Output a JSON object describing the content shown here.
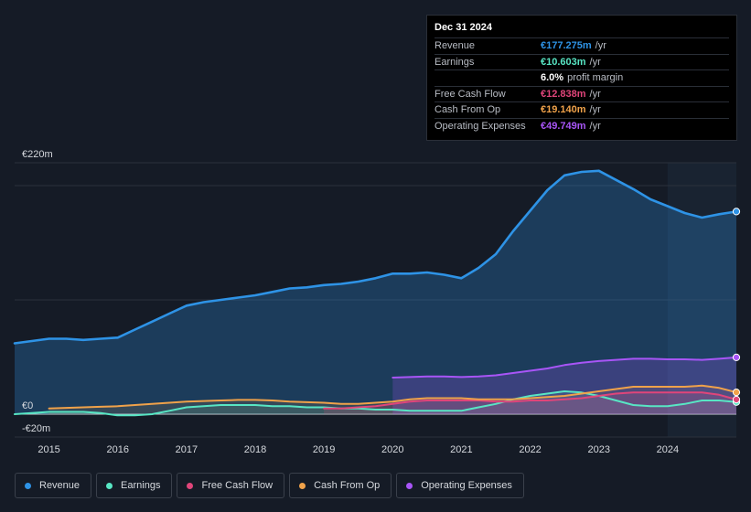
{
  "tooltip": {
    "date": "Dec 31 2024",
    "rows": [
      {
        "label": "Revenue",
        "value": "€177.275m",
        "unit": "/yr",
        "color": "#2e93e6"
      },
      {
        "label": "Earnings",
        "value": "€10.603m",
        "unit": "/yr",
        "color": "#58e6c4"
      },
      {
        "label": "",
        "value": "6.0%",
        "unit": "profit margin",
        "color": "#ffffff"
      },
      {
        "label": "Free Cash Flow",
        "value": "€12.838m",
        "unit": "/yr",
        "color": "#e0457a"
      },
      {
        "label": "Cash From Op",
        "value": "€19.140m",
        "unit": "/yr",
        "color": "#f0a24a"
      },
      {
        "label": "Operating Expenses",
        "value": "€49.749m",
        "unit": "/yr",
        "color": "#a855f7"
      }
    ]
  },
  "legend": [
    {
      "label": "Revenue",
      "color": "#2e93e6"
    },
    {
      "label": "Earnings",
      "color": "#58e6c4"
    },
    {
      "label": "Free Cash Flow",
      "color": "#e0457a"
    },
    {
      "label": "Cash From Op",
      "color": "#f0a24a"
    },
    {
      "label": "Operating Expenses",
      "color": "#a855f7"
    }
  ],
  "chart_data": {
    "type": "area",
    "title": "",
    "xlabel": "",
    "ylabel": "",
    "ylim": [
      -20,
      220
    ],
    "xlim": [
      2014.5,
      2025.0
    ],
    "y_tick_labels": [
      {
        "value": 220,
        "label": "€220m"
      },
      {
        "value": 0,
        "label": "€0"
      },
      {
        "value": -20,
        "label": "-€20m"
      }
    ],
    "x_ticks": [
      2015,
      2016,
      2017,
      2018,
      2019,
      2020,
      2021,
      2022,
      2023,
      2024
    ],
    "x_tick_labels": [
      "2015",
      "2016",
      "2017",
      "2018",
      "2019",
      "2020",
      "2021",
      "2022",
      "2023",
      "2024"
    ],
    "highlight_from": 2024.0,
    "series": [
      {
        "name": "Revenue",
        "color": "#2e93e6",
        "fill": true,
        "x": [
          2014.5,
          2014.75,
          2015.0,
          2015.25,
          2015.5,
          2015.75,
          2016.0,
          2016.25,
          2016.5,
          2016.75,
          2017.0,
          2017.25,
          2017.5,
          2017.75,
          2018.0,
          2018.25,
          2018.5,
          2018.75,
          2019.0,
          2019.25,
          2019.5,
          2019.75,
          2020.0,
          2020.25,
          2020.5,
          2020.75,
          2021.0,
          2021.25,
          2021.5,
          2021.75,
          2022.0,
          2022.25,
          2022.5,
          2022.75,
          2023.0,
          2023.25,
          2023.5,
          2023.75,
          2024.0,
          2024.25,
          2024.5,
          2024.75,
          2025.0
        ],
        "values": [
          62,
          64,
          66,
          66,
          65,
          66,
          67,
          74,
          81,
          88,
          95,
          98,
          100,
          102,
          104,
          107,
          110,
          111,
          113,
          114,
          116,
          119,
          123,
          123,
          124,
          122,
          119,
          128,
          140,
          160,
          178,
          196,
          209,
          212,
          213,
          205,
          197,
          188,
          182,
          176,
          172,
          175,
          177.3
        ]
      },
      {
        "name": "Earnings",
        "color": "#58e6c4",
        "fill": true,
        "x": [
          2014.5,
          2014.75,
          2015.0,
          2015.25,
          2015.5,
          2015.75,
          2016.0,
          2016.25,
          2016.5,
          2016.75,
          2017.0,
          2017.25,
          2017.5,
          2017.75,
          2018.0,
          2018.25,
          2018.5,
          2018.75,
          2019.0,
          2019.25,
          2019.5,
          2019.75,
          2020.0,
          2020.25,
          2020.5,
          2020.75,
          2021.0,
          2021.25,
          2021.5,
          2021.75,
          2022.0,
          2022.25,
          2022.5,
          2022.75,
          2023.0,
          2023.25,
          2023.5,
          2023.75,
          2024.0,
          2024.25,
          2024.5,
          2024.75,
          2025.0
        ],
        "values": [
          0,
          1,
          2,
          2,
          2,
          1,
          -1,
          -1,
          0,
          3,
          6,
          7,
          8,
          8,
          8,
          7,
          7,
          6,
          6,
          5,
          5,
          4,
          4,
          3,
          3,
          3,
          3,
          6,
          9,
          13,
          16,
          18,
          20,
          19,
          16,
          12,
          8,
          7,
          7,
          9,
          12,
          12,
          10.6
        ]
      },
      {
        "name": "Free Cash Flow",
        "color": "#e0457a",
        "fill": true,
        "x": [
          2019.0,
          2019.25,
          2019.5,
          2019.75,
          2020.0,
          2020.25,
          2020.5,
          2020.75,
          2021.0,
          2021.25,
          2021.5,
          2021.75,
          2022.0,
          2022.25,
          2022.5,
          2022.75,
          2023.0,
          2023.25,
          2023.5,
          2023.75,
          2024.0,
          2024.25,
          2024.5,
          2024.75,
          2025.0
        ],
        "values": [
          5,
          5,
          6,
          7,
          9,
          11,
          12,
          12,
          12,
          12,
          11,
          11,
          12,
          12,
          13,
          14,
          16,
          18,
          19,
          19,
          19,
          19,
          19,
          17,
          12.8
        ]
      },
      {
        "name": "Cash From Op",
        "color": "#f0a24a",
        "fill": true,
        "x": [
          2015.0,
          2015.25,
          2015.5,
          2015.75,
          2016.0,
          2016.25,
          2016.5,
          2016.75,
          2017.0,
          2017.25,
          2017.5,
          2017.75,
          2018.0,
          2018.25,
          2018.5,
          2018.75,
          2019.0,
          2019.25,
          2019.5,
          2019.75,
          2020.0,
          2020.25,
          2020.5,
          2020.75,
          2021.0,
          2021.25,
          2021.5,
          2021.75,
          2022.0,
          2022.25,
          2022.5,
          2022.75,
          2023.0,
          2023.25,
          2023.5,
          2023.75,
          2024.0,
          2024.25,
          2024.5,
          2024.75,
          2025.0
        ],
        "values": [
          5,
          5.5,
          6,
          6.5,
          7,
          8,
          9,
          10,
          11,
          11.5,
          12,
          12.5,
          12.5,
          12,
          11,
          10.5,
          10,
          9,
          9,
          10,
          11,
          13,
          14,
          14,
          14,
          13,
          13,
          13,
          14,
          15,
          16,
          18,
          20,
          22,
          24,
          24,
          24,
          24,
          25,
          23,
          19.1
        ]
      },
      {
        "name": "Operating Expenses",
        "color": "#a855f7",
        "fill": true,
        "x": [
          2020.0,
          2020.25,
          2020.5,
          2020.75,
          2021.0,
          2021.25,
          2021.5,
          2021.75,
          2022.0,
          2022.25,
          2022.5,
          2022.75,
          2023.0,
          2023.25,
          2023.5,
          2023.75,
          2024.0,
          2024.25,
          2024.5,
          2024.75,
          2025.0
        ],
        "values": [
          32,
          32.5,
          33,
          33,
          32.5,
          33,
          34,
          36,
          38,
          40,
          43,
          45,
          46.5,
          47.5,
          48.5,
          48.5,
          48,
          48,
          47.5,
          48.5,
          49.7
        ]
      }
    ]
  }
}
